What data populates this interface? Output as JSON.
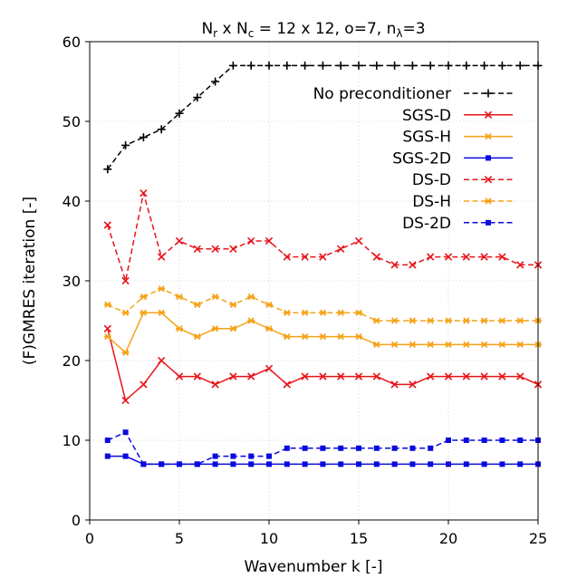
{
  "chart_data": {
    "type": "line",
    "title": "N_r x N_c = 12 x 12, o=7, n_λ=3",
    "title_parts": {
      "n1": "N",
      "n1_sub": "r",
      "sep": " x ",
      "n2": "N",
      "n2_sub": "c",
      "rest": " = 12 x 12, o=7, ",
      "n3": "n",
      "n3_sub": "λ",
      "rest2": "=3"
    },
    "xlabel": "Wavenumber k [-]",
    "ylabel": "(F)GMRES iteration [-]",
    "xlim": [
      0,
      25
    ],
    "ylim": [
      0,
      60
    ],
    "xticks": [
      0,
      5,
      10,
      15,
      20,
      25
    ],
    "yticks": [
      0,
      10,
      20,
      30,
      40,
      50,
      60
    ],
    "grid": true,
    "legend_position": "upper-right",
    "x": [
      1,
      2,
      3,
      4,
      5,
      6,
      7,
      8,
      9,
      10,
      11,
      12,
      13,
      14,
      15,
      16,
      17,
      18,
      19,
      20,
      21,
      22,
      23,
      24,
      25
    ],
    "series": [
      {
        "name": "No preconditioner",
        "color": "#000000",
        "dash": "dashed",
        "marker": "plus",
        "values": [
          44,
          47,
          48,
          49,
          51,
          53,
          55,
          57,
          57,
          57,
          57,
          57,
          57,
          57,
          57,
          57,
          57,
          57,
          57,
          57,
          57,
          57,
          57,
          57,
          57
        ]
      },
      {
        "name": "SGS-D",
        "color": "#e8141a",
        "dash": "solid",
        "marker": "x",
        "values": [
          24,
          15,
          17,
          20,
          18,
          18,
          17,
          18,
          18,
          19,
          17,
          18,
          18,
          18,
          18,
          18,
          17,
          17,
          18,
          18,
          18,
          18,
          18,
          18,
          17
        ]
      },
      {
        "name": "SGS-H",
        "color": "#f5a31a",
        "dash": "solid",
        "marker": "star",
        "values": [
          23,
          21,
          26,
          26,
          24,
          23,
          24,
          24,
          25,
          24,
          23,
          23,
          23,
          23,
          23,
          22,
          22,
          22,
          22,
          22,
          22,
          22,
          22,
          22,
          22
        ]
      },
      {
        "name": "SGS-2D",
        "color": "#0a0adf",
        "dash": "solid",
        "marker": "square",
        "values": [
          8,
          8,
          7,
          7,
          7,
          7,
          7,
          7,
          7,
          7,
          7,
          7,
          7,
          7,
          7,
          7,
          7,
          7,
          7,
          7,
          7,
          7,
          7,
          7,
          7
        ]
      },
      {
        "name": "DS-D",
        "color": "#e8141a",
        "dash": "dashed",
        "marker": "x",
        "values": [
          37,
          30,
          41,
          33,
          35,
          34,
          34,
          34,
          35,
          35,
          33,
          33,
          33,
          34,
          35,
          33,
          32,
          32,
          33,
          33,
          33,
          33,
          33,
          32,
          32
        ]
      },
      {
        "name": "DS-H",
        "color": "#f5a31a",
        "dash": "dashed",
        "marker": "star",
        "values": [
          27,
          26,
          28,
          29,
          28,
          27,
          28,
          27,
          28,
          27,
          26,
          26,
          26,
          26,
          26,
          25,
          25,
          25,
          25,
          25,
          25,
          25,
          25,
          25,
          25
        ]
      },
      {
        "name": "DS-2D",
        "color": "#0a0adf",
        "dash": "dashed",
        "marker": "square",
        "values": [
          10,
          11,
          7,
          7,
          7,
          7,
          8,
          8,
          8,
          8,
          9,
          9,
          9,
          9,
          9,
          9,
          9,
          9,
          9,
          10,
          10,
          10,
          10,
          10,
          10
        ]
      }
    ]
  }
}
